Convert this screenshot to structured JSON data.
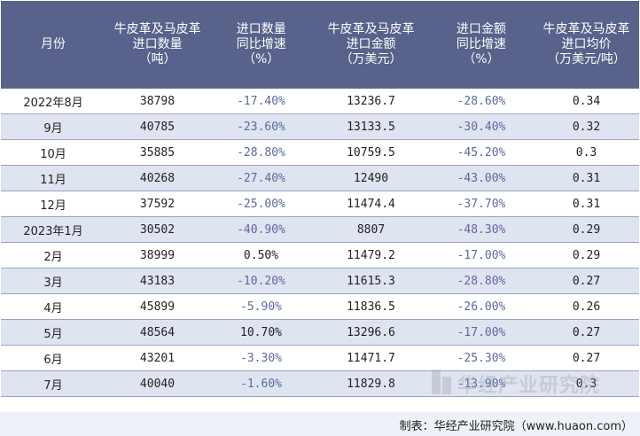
{
  "headers": [
    "月份",
    "牛皮革及马皮革\n进口数量\n（吨）",
    "进口数量\n同比增速\n（%）",
    "牛皮革及马皮革\n进口金额\n（万美元）",
    "进口金额\n同比增速\n（%）",
    "牛皮革及马皮革\n进口均价\n（万美元/吨）"
  ],
  "rows": [
    {
      "month": "2022年8月",
      "qty": "38798",
      "qty_yoy": "-17.40%",
      "amt": "13236.7",
      "amt_yoy": "-28.60%",
      "price": "0.34"
    },
    {
      "month": "9月",
      "qty": "40785",
      "qty_yoy": "-23.60%",
      "amt": "13133.5",
      "amt_yoy": "-30.40%",
      "price": "0.32"
    },
    {
      "month": "10月",
      "qty": "35885",
      "qty_yoy": "-28.80%",
      "amt": "10759.5",
      "amt_yoy": "-45.20%",
      "price": "0.3"
    },
    {
      "month": "11月",
      "qty": "40268",
      "qty_yoy": "-27.40%",
      "amt": "12490",
      "amt_yoy": "-43.00%",
      "price": "0.31"
    },
    {
      "month": "12月",
      "qty": "37592",
      "qty_yoy": "-25.00%",
      "amt": "11474.4",
      "amt_yoy": "-37.70%",
      "price": "0.31"
    },
    {
      "month": "2023年1月",
      "qty": "30502",
      "qty_yoy": "-40.90%",
      "amt": "8807",
      "amt_yoy": "-48.30%",
      "price": "0.29"
    },
    {
      "month": "2月",
      "qty": "38999",
      "qty_yoy": "0.50%",
      "amt": "11479.2",
      "amt_yoy": "-17.00%",
      "price": "0.29"
    },
    {
      "month": "3月",
      "qty": "43183",
      "qty_yoy": "-10.20%",
      "amt": "11615.3",
      "amt_yoy": "-28.80%",
      "price": "0.27"
    },
    {
      "month": "4月",
      "qty": "45899",
      "qty_yoy": "-5.90%",
      "amt": "11836.5",
      "amt_yoy": "-26.00%",
      "price": "0.26"
    },
    {
      "month": "5月",
      "qty": "48564",
      "qty_yoy": "10.70%",
      "amt": "13296.6",
      "amt_yoy": "-17.00%",
      "price": "0.27"
    },
    {
      "month": "6月",
      "qty": "43201",
      "qty_yoy": "-3.30%",
      "amt": "11471.7",
      "amt_yoy": "-25.30%",
      "price": "0.27"
    },
    {
      "month": "7月",
      "qty": "40040",
      "qty_yoy": "-1.60%",
      "amt": "11829.8",
      "amt_yoy": "-13.90%",
      "price": "0.3"
    }
  ],
  "footer": "制表：华经产业研究院（www.huaon.com）",
  "watermark": "华经产业研究院",
  "colors": {
    "header_bg": "#58628a",
    "row_alt": "#dfe4f1",
    "negative_text": "#5b6a9c"
  }
}
